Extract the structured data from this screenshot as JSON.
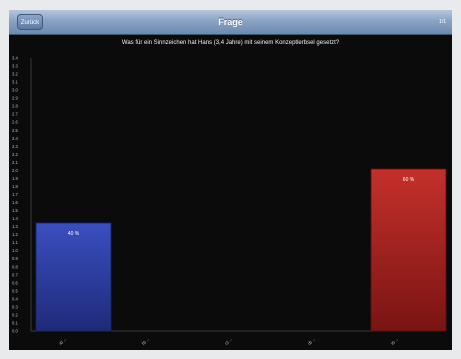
{
  "navbar": {
    "back_label": "Zurück",
    "title": "Frage",
    "right_label": "1/1"
  },
  "question": "Was für ein Sinnzeichen hat Hans (3,4 Jahre) mit seinem Konzeptlerbsel gesetzt?",
  "colors": {
    "bar_blue": "#2c3fa8",
    "bar_red": "#b3211e",
    "background": "#0b0b0b"
  },
  "chart_data": {
    "type": "bar",
    "categories": [
      "a) ...",
      "b) ...",
      "c) ...",
      "d) ...",
      "e) ..."
    ],
    "values": [
      0.4,
      0,
      0,
      0,
      0.6
    ],
    "bar_labels": [
      "40 %",
      "",
      "",
      "",
      "60 %"
    ],
    "ylim": [
      0,
      1
    ],
    "yticks": [
      "0.0",
      "0.1",
      "0.2",
      "0.3",
      "0.4",
      "0.5",
      "0.6",
      "0.7",
      "0.8",
      "0.9",
      "1.0",
      "1.1",
      "1.2",
      "1.3",
      "1.4",
      "1.5",
      "1.6",
      "1.7",
      "1.8",
      "1.9",
      "2.0",
      "2.1",
      "2.2",
      "2.3",
      "2.4",
      "2.5",
      "2.6",
      "2.7",
      "2.8",
      "2.9",
      "3.0",
      "3.1",
      "3.2",
      "3.3",
      "3.4"
    ],
    "grid": false
  }
}
